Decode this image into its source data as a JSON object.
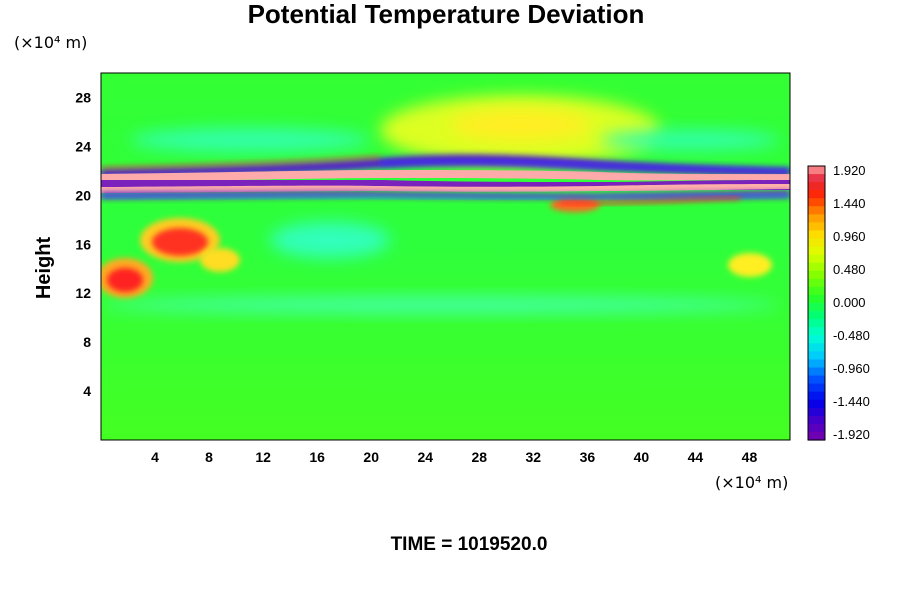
{
  "chart_data": {
    "type": "heatmap",
    "title": "Potential Temperature Deviation",
    "ylabel": "Height",
    "xlabel": "",
    "y_unit": "(×10⁴ m)",
    "x_unit": "(×10⁴ m)",
    "xlim": [
      0,
      51
    ],
    "ylim": [
      0,
      30
    ],
    "x_ticks": [
      "4",
      "8",
      "12",
      "16",
      "20",
      "24",
      "28",
      "32",
      "36",
      "40",
      "44",
      "48"
    ],
    "x_tick_values": [
      4,
      8,
      12,
      16,
      20,
      24,
      28,
      32,
      36,
      40,
      44,
      48
    ],
    "y_ticks": [
      "4",
      "8",
      "12",
      "16",
      "20",
      "24",
      "28"
    ],
    "y_tick_values": [
      4,
      8,
      12,
      16,
      20,
      24,
      28
    ],
    "colorbar": {
      "labels": [
        "1.920",
        "1.440",
        "0.960",
        "0.480",
        "0.000",
        "-0.480",
        "-0.960",
        "-1.440",
        "-1.920"
      ],
      "min": -1.92,
      "max": 1.92,
      "levels": 34
    },
    "features": [
      {
        "name": "upper warm band",
        "y_center": 21.8,
        "value": 1.92
      },
      {
        "name": "cold band above",
        "y_center": 22.6,
        "value": -1.9
      },
      {
        "name": "cold band below",
        "y_center": 20.5,
        "value": -1.9
      },
      {
        "name": "lower warm band",
        "y_center": 20.0,
        "value": 1.92
      },
      {
        "name": "warm patch",
        "x": 6.5,
        "y": 15.5,
        "value": 1.6
      },
      {
        "name": "warm patch",
        "x": 3,
        "y": 13,
        "value": 1.5
      },
      {
        "name": "warm lobe",
        "x": 31,
        "y": 25,
        "value": 0.55
      }
    ],
    "grid": false
  },
  "time_label": "TIME = 1019520.0"
}
